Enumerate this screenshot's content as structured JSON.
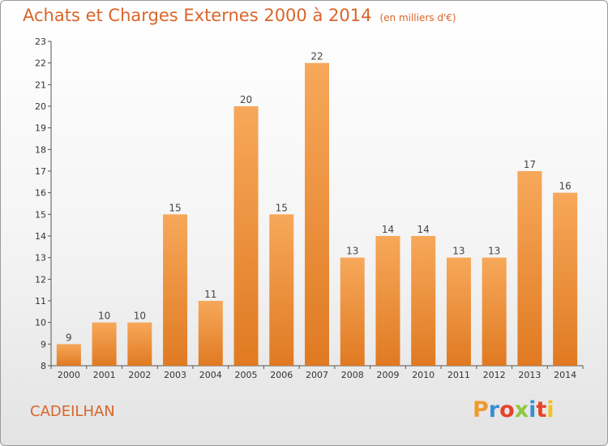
{
  "title": "Achats et Charges Externes 2000 à 2014",
  "unit_note": "(en milliers d'€)",
  "commune": "CADEILHAN",
  "logo": {
    "text": "Proxiti",
    "colors": [
      "#f09a2d",
      "#3a8fd1",
      "#e6432a",
      "#8ec63f",
      "#3a8fd1",
      "#e6432a",
      "#f0c419"
    ]
  },
  "colors": {
    "bar_top": "#f7a85a",
    "bar_bottom": "#e07a22",
    "title": "#d9652a"
  },
  "chart_data": {
    "type": "bar",
    "categories": [
      "2000",
      "2001",
      "2002",
      "2003",
      "2004",
      "2005",
      "2006",
      "2007",
      "2008",
      "2009",
      "2010",
      "2011",
      "2012",
      "2013",
      "2014"
    ],
    "values": [
      9,
      10,
      10,
      15,
      11,
      20,
      15,
      22,
      13,
      14,
      14,
      13,
      13,
      17,
      16
    ],
    "ylim": [
      8,
      23
    ],
    "yticks": [
      8,
      9,
      10,
      11,
      12,
      13,
      14,
      15,
      16,
      17,
      18,
      19,
      20,
      21,
      22,
      23
    ],
    "grid": false
  }
}
